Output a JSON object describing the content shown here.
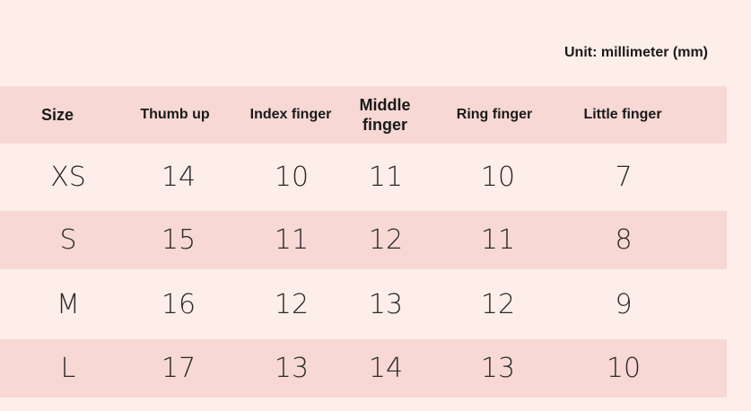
{
  "unit": "Unit: millimeter (mm)",
  "colors": {
    "background": "#fdeeea",
    "band": "#f7d8d4"
  },
  "headers": [
    "Size",
    "Thumb up",
    "Index finger",
    "Middle finger",
    "Ring finger",
    "Little finger"
  ],
  "rows": [
    [
      "XS",
      "14",
      "10",
      "11",
      "10",
      "7"
    ],
    [
      "S",
      "15",
      "11",
      "12",
      "11",
      "8"
    ],
    [
      "M",
      "16",
      "12",
      "13",
      "12",
      "9"
    ],
    [
      "L",
      "17",
      "13",
      "14",
      "13",
      "10"
    ]
  ]
}
